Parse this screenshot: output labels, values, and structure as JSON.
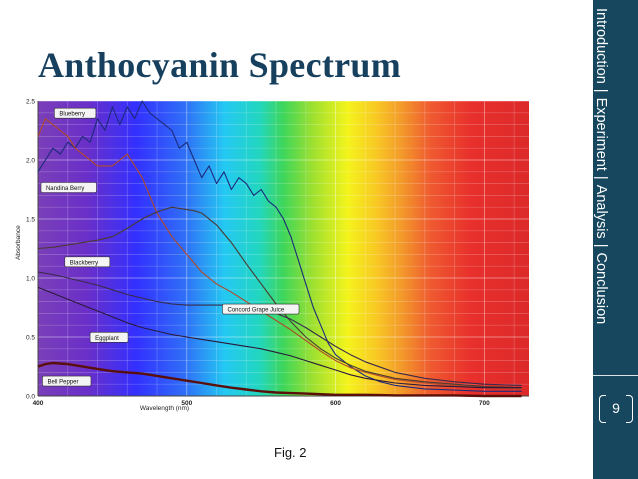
{
  "slide": {
    "title": "Anthocyanin Spectrum",
    "caption": "Fig. 2",
    "page_number": "9"
  },
  "nav": {
    "items": [
      "Introduction",
      "Experiment",
      "Analysis",
      "Conclusion"
    ],
    "active": "Experiment",
    "separator": "|"
  },
  "colors": {
    "sidebar": "#16475f",
    "title": "#17405e"
  },
  "chart_data": {
    "type": "line",
    "title": "",
    "xlabel": "Wavelength (nm)",
    "ylabel": "Absorbance",
    "xlim": [
      400,
      730
    ],
    "ylim": [
      0,
      2.5
    ],
    "x_ticks": [
      400,
      500,
      600,
      700
    ],
    "y_ticks": [
      0.0,
      0.5,
      1.0,
      1.5,
      2.0,
      2.5
    ],
    "background": "visible spectrum gradient (violet to red)",
    "grid": true,
    "series": [
      {
        "name": "Blueberry",
        "color": "#1c2a7c",
        "x": [
          400,
          405,
          410,
          415,
          420,
          425,
          430,
          435,
          440,
          445,
          450,
          455,
          460,
          465,
          470,
          475,
          480,
          485,
          490,
          495,
          500,
          505,
          510,
          515,
          520,
          525,
          530,
          535,
          540,
          545,
          550,
          555,
          560,
          565,
          570,
          575,
          580,
          585,
          590,
          595,
          600,
          610,
          620,
          630,
          640,
          660,
          680,
          700,
          725
        ],
        "y": [
          1.9,
          2.0,
          2.1,
          2.05,
          2.15,
          2.1,
          2.2,
          2.15,
          2.35,
          2.25,
          2.45,
          2.3,
          2.45,
          2.35,
          2.5,
          2.4,
          2.35,
          2.3,
          2.25,
          2.1,
          2.15,
          2.0,
          1.85,
          1.95,
          1.8,
          1.9,
          1.75,
          1.85,
          1.8,
          1.7,
          1.75,
          1.65,
          1.6,
          1.5,
          1.35,
          1.15,
          0.95,
          0.75,
          0.6,
          0.45,
          0.35,
          0.25,
          0.17,
          0.12,
          0.09,
          0.06,
          0.05,
          0.04,
          0.04
        ]
      },
      {
        "name": "Nandina Berry",
        "color": "#b04a2a",
        "x": [
          400,
          405,
          410,
          415,
          420,
          425,
          430,
          440,
          450,
          460,
          470,
          480,
          490,
          500,
          510,
          520,
          530,
          540,
          550,
          560,
          570,
          580,
          590,
          600,
          610,
          620,
          640,
          660,
          680,
          700,
          725
        ],
        "y": [
          2.2,
          2.35,
          2.3,
          2.25,
          2.2,
          2.1,
          2.05,
          1.95,
          1.95,
          2.05,
          1.85,
          1.55,
          1.35,
          1.2,
          1.05,
          0.95,
          0.88,
          0.8,
          0.72,
          0.64,
          0.56,
          0.47,
          0.38,
          0.3,
          0.24,
          0.2,
          0.14,
          0.11,
          0.09,
          0.07,
          0.06
        ]
      },
      {
        "name": "Blackberry",
        "color": "#4a3a30",
        "x": [
          400,
          410,
          420,
          430,
          440,
          450,
          460,
          470,
          480,
          490,
          500,
          505,
          510,
          520,
          530,
          540,
          550,
          560,
          570,
          580,
          590,
          600,
          610,
          620,
          640,
          660,
          680,
          700,
          725
        ],
        "y": [
          1.25,
          1.26,
          1.28,
          1.3,
          1.32,
          1.35,
          1.42,
          1.5,
          1.56,
          1.6,
          1.58,
          1.57,
          1.55,
          1.45,
          1.3,
          1.12,
          0.95,
          0.78,
          0.63,
          0.5,
          0.4,
          0.32,
          0.26,
          0.21,
          0.15,
          0.12,
          0.1,
          0.08,
          0.07
        ]
      },
      {
        "name": "Concord Grape Juice",
        "color": "#3a2a4a",
        "x": [
          400,
          410,
          420,
          430,
          440,
          450,
          460,
          470,
          480,
          490,
          500,
          510,
          520,
          530,
          540,
          550,
          560,
          570,
          580,
          590,
          600,
          610,
          620,
          640,
          660,
          680,
          700,
          725
        ],
        "y": [
          1.05,
          1.03,
          1.0,
          0.97,
          0.94,
          0.9,
          0.86,
          0.83,
          0.8,
          0.78,
          0.77,
          0.77,
          0.77,
          0.77,
          0.76,
          0.74,
          0.7,
          0.65,
          0.58,
          0.5,
          0.42,
          0.35,
          0.29,
          0.2,
          0.15,
          0.12,
          0.1,
          0.09
        ]
      },
      {
        "name": "Eggplant",
        "color": "#2a1a3a",
        "x": [
          400,
          410,
          420,
          430,
          440,
          450,
          460,
          470,
          480,
          490,
          500,
          510,
          520,
          530,
          540,
          550,
          560,
          570,
          580,
          590,
          600,
          610,
          620,
          640,
          660,
          680,
          700,
          725
        ],
        "y": [
          0.92,
          0.87,
          0.82,
          0.77,
          0.72,
          0.67,
          0.62,
          0.58,
          0.55,
          0.52,
          0.5,
          0.48,
          0.46,
          0.44,
          0.42,
          0.4,
          0.37,
          0.34,
          0.3,
          0.26,
          0.22,
          0.18,
          0.15,
          0.11,
          0.09,
          0.08,
          0.07,
          0.07
        ]
      },
      {
        "name": "Bell Pepper",
        "color": "#5a0f0a",
        "x": [
          400,
          405,
          410,
          420,
          430,
          440,
          450,
          460,
          470,
          480,
          490,
          500,
          510,
          520,
          530,
          540,
          550,
          560,
          570,
          580,
          590,
          600,
          620,
          640,
          660,
          680,
          700,
          725
        ],
        "y": [
          0.25,
          0.27,
          0.28,
          0.27,
          0.25,
          0.23,
          0.21,
          0.2,
          0.19,
          0.17,
          0.15,
          0.13,
          0.11,
          0.09,
          0.07,
          0.055,
          0.04,
          0.03,
          0.025,
          0.02,
          0.015,
          0.01,
          0.01,
          0.005,
          0.005,
          0.005,
          0.0,
          0.0
        ]
      }
    ]
  }
}
